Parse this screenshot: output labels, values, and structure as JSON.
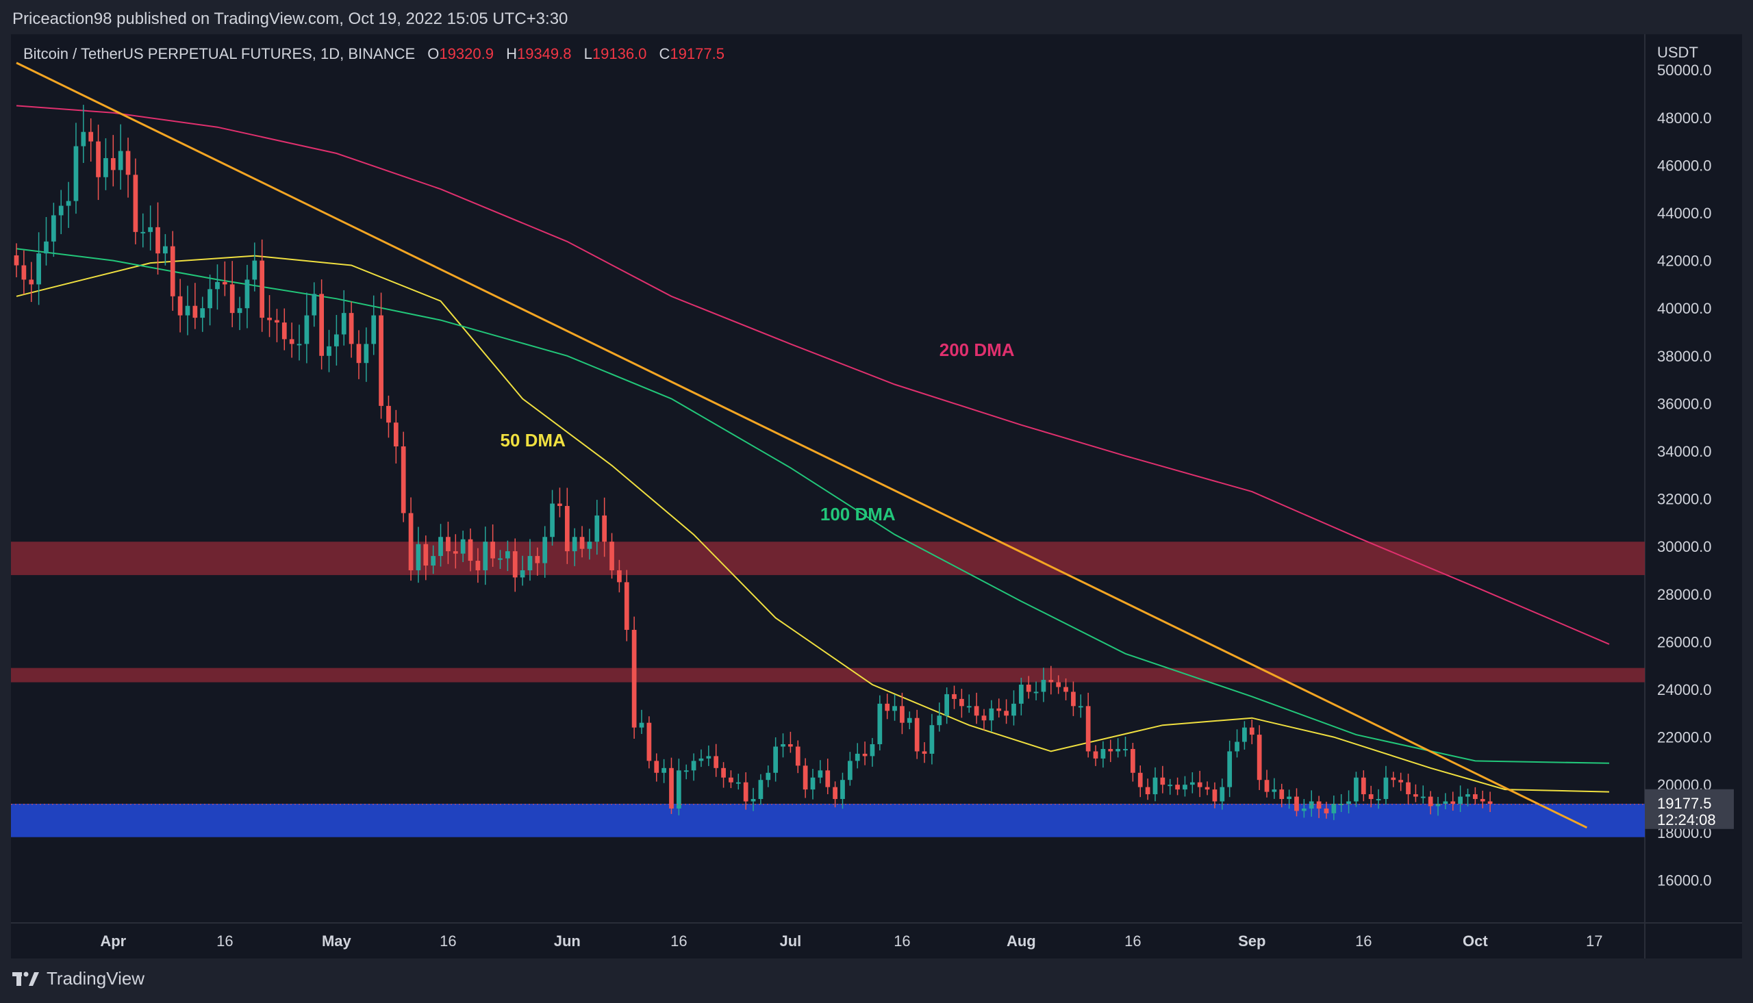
{
  "header": {
    "publisher_line": "Priceaction98 published on TradingView.com, Oct 19, 2022 15:05 UTC+3:30"
  },
  "legend": {
    "symbol": "Bitcoin / TetherUS PERPETUAL FUTURES, 1D, BINANCE",
    "o_label": "O",
    "o_value": "19320.9",
    "h_label": "H",
    "h_value": "19349.8",
    "l_label": "L",
    "l_value": "19136.0",
    "c_label": "C",
    "c_value": "19177.5"
  },
  "price_tag": {
    "price": "19177.5",
    "countdown": "12:24:08"
  },
  "footer": {
    "brand": "TradingView"
  },
  "colors": {
    "background": "#131722",
    "frame": "#1e222d",
    "up": "#26a69a",
    "down": "#ef5350",
    "ma50": "#f0e040",
    "ma100": "#22c77a",
    "ma200": "#e0306e",
    "trendline": "#f5a623",
    "resistance_zone": "#7a2633",
    "support_zone": "#2145c8"
  },
  "chart_data": {
    "type": "candlestick",
    "y_unit": "USDT",
    "ylim": [
      14200,
      51500
    ],
    "y_ticks": [
      16000,
      18000,
      20000,
      22000,
      24000,
      26000,
      28000,
      30000,
      32000,
      34000,
      36000,
      38000,
      40000,
      42000,
      44000,
      46000,
      48000,
      50000
    ],
    "y_tick_labels": [
      "16000.0",
      "18000.0",
      "20000.0",
      "22000.0",
      "24000.0",
      "26000.0",
      "28000.0",
      "30000.0",
      "32000.0",
      "34000.0",
      "36000.0",
      "38000.0",
      "40000.0",
      "42000.0",
      "44000.0",
      "46000.0",
      "48000.0",
      "50000.0"
    ],
    "x_start": "2022-03-19",
    "x_end": "2022-10-19",
    "x_tick_labels": [
      {
        "date": "2022-04-01",
        "label": "Apr"
      },
      {
        "date": "2022-04-16",
        "label": "16"
      },
      {
        "date": "2022-05-01",
        "label": "May"
      },
      {
        "date": "2022-05-16",
        "label": "16"
      },
      {
        "date": "2022-06-01",
        "label": "Jun"
      },
      {
        "date": "2022-06-16",
        "label": "16"
      },
      {
        "date": "2022-07-01",
        "label": "Jul"
      },
      {
        "date": "2022-07-16",
        "label": "16"
      },
      {
        "date": "2022-08-01",
        "label": "Aug"
      },
      {
        "date": "2022-08-16",
        "label": "16"
      },
      {
        "date": "2022-09-01",
        "label": "Sep"
      },
      {
        "date": "2022-09-16",
        "label": "16"
      },
      {
        "date": "2022-10-01",
        "label": "Oct"
      },
      {
        "date": "2022-10-17",
        "label": "17"
      }
    ],
    "close_series": {
      "start": "2022-03-19",
      "values": [
        41800,
        41200,
        41000,
        42300,
        42800,
        43900,
        44300,
        44500,
        46800,
        47400,
        47000,
        45500,
        46300,
        45800,
        46600,
        45600,
        43200,
        43200,
        43400,
        42300,
        42600,
        40500,
        39700,
        40100,
        39600,
        40000,
        40800,
        41100,
        41000,
        39800,
        40000,
        41200,
        42000,
        39600,
        39500,
        39400,
        38700,
        38500,
        38500,
        39700,
        40600,
        38000,
        38400,
        38900,
        39800,
        38500,
        37700,
        38500,
        39700,
        35900,
        35200,
        34200,
        31400,
        29000,
        30100,
        29200,
        29600,
        30400,
        29800,
        29700,
        30300,
        29400,
        29000,
        30200,
        29500,
        29500,
        29800,
        28700,
        29000,
        29600,
        29300,
        30400,
        31800,
        31700,
        29800,
        30400,
        29900,
        30200,
        31300,
        30200,
        29000,
        28500,
        26500,
        22400,
        22600,
        21000,
        20500,
        20700,
        19000,
        20600,
        20600,
        21000,
        21100,
        21200,
        20700,
        20300,
        20100,
        20100,
        19300,
        19400,
        20200,
        20500,
        21600,
        21700,
        21600,
        20800,
        19800,
        20300,
        20600,
        19900,
        19400,
        20200,
        21000,
        21300,
        21200,
        21700,
        23400,
        23100,
        23300,
        22600,
        22800,
        21400,
        21300,
        22500,
        22900,
        23800,
        23600,
        23300,
        23300,
        22900,
        22700,
        23200,
        23100,
        22900,
        23400,
        24200,
        23900,
        23900,
        24400,
        24300,
        24100,
        23900,
        23300,
        23300,
        21400,
        21100,
        21500,
        21400,
        21500,
        21500,
        20500,
        19900,
        19600,
        20300,
        20000,
        20000,
        19800,
        20000,
        20100,
        19900,
        19800,
        19300,
        19900,
        21400,
        21800,
        22400,
        22100,
        20200,
        19700,
        19800,
        19400,
        19500,
        18900,
        19000,
        19300,
        19000,
        18800,
        19200,
        19200,
        19300,
        20300,
        19600,
        19400,
        19400,
        20300,
        20200,
        20100,
        19600,
        19500,
        19500,
        19100,
        19200,
        19300,
        19200,
        19500,
        19600,
        19400,
        19300,
        19200
      ]
    },
    "moving_averages": [
      {
        "name": "50 DMA",
        "color": "#f0e040",
        "points": [
          [
            "2022-03-19",
            40500
          ],
          [
            "2022-04-06",
            41900
          ],
          [
            "2022-04-20",
            42200
          ],
          [
            "2022-05-03",
            41800
          ],
          [
            "2022-05-15",
            40300
          ],
          [
            "2022-05-26",
            36200
          ],
          [
            "2022-06-07",
            33400
          ],
          [
            "2022-06-18",
            30500
          ],
          [
            "2022-06-29",
            27000
          ],
          [
            "2022-07-12",
            24200
          ],
          [
            "2022-07-25",
            22500
          ],
          [
            "2022-08-05",
            21400
          ],
          [
            "2022-08-20",
            22500
          ],
          [
            "2022-09-01",
            22800
          ],
          [
            "2022-09-12",
            22000
          ],
          [
            "2022-09-25",
            20700
          ],
          [
            "2022-10-05",
            19800
          ],
          [
            "2022-10-19",
            19700
          ]
        ]
      },
      {
        "name": "100 DMA",
        "color": "#22c77a",
        "points": [
          [
            "2022-03-19",
            42500
          ],
          [
            "2022-04-01",
            42000
          ],
          [
            "2022-04-15",
            41200
          ],
          [
            "2022-05-01",
            40400
          ],
          [
            "2022-05-15",
            39500
          ],
          [
            "2022-06-01",
            38000
          ],
          [
            "2022-06-15",
            36200
          ],
          [
            "2022-07-01",
            33300
          ],
          [
            "2022-07-15",
            30500
          ],
          [
            "2022-08-01",
            27700
          ],
          [
            "2022-08-15",
            25500
          ],
          [
            "2022-09-01",
            23700
          ],
          [
            "2022-09-15",
            22100
          ],
          [
            "2022-10-01",
            21000
          ],
          [
            "2022-10-19",
            20900
          ]
        ]
      },
      {
        "name": "200 DMA",
        "color": "#e0306e",
        "points": [
          [
            "2022-03-19",
            48500
          ],
          [
            "2022-04-01",
            48200
          ],
          [
            "2022-04-15",
            47600
          ],
          [
            "2022-05-01",
            46500
          ],
          [
            "2022-05-15",
            45000
          ],
          [
            "2022-06-01",
            42800
          ],
          [
            "2022-06-15",
            40500
          ],
          [
            "2022-07-01",
            38500
          ],
          [
            "2022-07-15",
            36800
          ],
          [
            "2022-08-01",
            35100
          ],
          [
            "2022-08-15",
            33800
          ],
          [
            "2022-09-01",
            32300
          ],
          [
            "2022-09-15",
            30400
          ],
          [
            "2022-10-01",
            28300
          ],
          [
            "2022-10-19",
            25900
          ]
        ]
      }
    ],
    "trendline": {
      "start": [
        "2022-03-19",
        50300
      ],
      "end": [
        "2022-10-16",
        18200
      ]
    },
    "zones": [
      {
        "name": "resistance-upper",
        "low": 28800,
        "high": 30200
      },
      {
        "name": "resistance-lower",
        "low": 24300,
        "high": 24900
      },
      {
        "name": "support",
        "low": 17800,
        "high": 19200
      }
    ],
    "annotations": [
      {
        "text": "200 DMA",
        "color": "#e0306e",
        "at": [
          "2022-07-21",
          38000
        ]
      },
      {
        "text": "50 DMA",
        "color": "#f0e040",
        "at": [
          "2022-05-23",
          34200
        ]
      },
      {
        "text": "100 DMA",
        "color": "#22c77a",
        "at": [
          "2022-07-05",
          31100
        ]
      }
    ]
  }
}
